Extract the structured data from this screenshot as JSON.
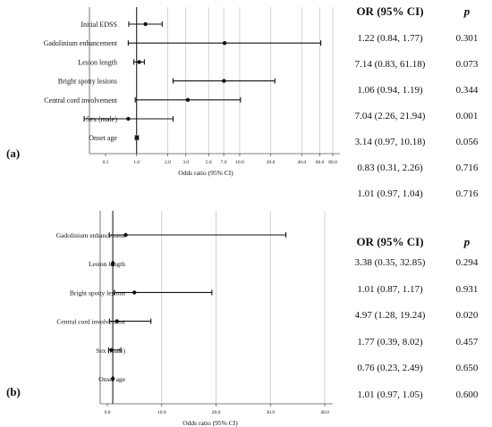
{
  "chart_data": [
    {
      "type": "forest",
      "panel_label": "(a)",
      "xlabel": "Odds ratio (95% CI)",
      "x_scale": "log",
      "x_ticks": [
        "0.5",
        "1.0",
        "2.0",
        "3.0",
        "5.0",
        "7.0",
        "10.0",
        "20.0",
        "40.0",
        "60.0",
        "80.0"
      ],
      "x_tick_values": [
        0.5,
        1,
        2,
        3,
        5,
        7,
        10,
        20,
        40,
        60,
        80
      ],
      "reference_line": 1,
      "categories": [
        "Initial EDSS",
        "Gadolinium enhancement",
        "Lesion length",
        "Bright spotty lesions",
        "Central cord involvement",
        "Sex (male)",
        "Onset age"
      ],
      "or": [
        1.22,
        7.14,
        1.06,
        7.04,
        3.14,
        0.83,
        1.01
      ],
      "lower": [
        0.84,
        0.83,
        0.94,
        2.26,
        0.97,
        0.31,
        0.97
      ],
      "upper": [
        1.77,
        61.18,
        1.19,
        21.94,
        10.18,
        2.26,
        1.04
      ],
      "table": {
        "header_or": "OR (95% CI)",
        "header_p": "p",
        "rows": [
          {
            "or_ci": "1.22 (0.84, 1.77)",
            "p": "0.301"
          },
          {
            "or_ci": "7.14 (0.83, 61.18)",
            "p": "0.073"
          },
          {
            "or_ci": "1.06 (0.94, 1.19)",
            "p": "0.344"
          },
          {
            "or_ci": "7.04 (2.26, 21.94)",
            "p": "0.001"
          },
          {
            "or_ci": "3.14 (0.97, 10.18)",
            "p": "0.056"
          },
          {
            "or_ci": "0.83 (0.31, 2.26)",
            "p": "0.716"
          },
          {
            "or_ci": "1.01 (0.97, 1.04)",
            "p": "0.716"
          }
        ]
      }
    },
    {
      "type": "forest",
      "panel_label": "(b)",
      "xlabel": "Odds ratio (95% CI)",
      "x_scale": "linear",
      "x_ticks": [
        "0.0",
        "10.0",
        "20.0",
        "30.0",
        "40.0"
      ],
      "x_tick_values": [
        0,
        10,
        20,
        30,
        40
      ],
      "reference_line": 1,
      "categories": [
        "Gadolinium enhancement",
        "Lesion length",
        "Bright spotty lesions",
        "Central cord involvement",
        "Sex (male)",
        "Onset age"
      ],
      "or": [
        3.38,
        1.01,
        4.97,
        1.77,
        0.76,
        1.01
      ],
      "lower": [
        0.35,
        0.87,
        1.28,
        0.39,
        0.23,
        0.97
      ],
      "upper": [
        32.85,
        1.17,
        19.24,
        8.02,
        2.49,
        1.05
      ],
      "table": {
        "header_or": "OR (95% CI)",
        "header_p": "p",
        "rows": [
          {
            "or_ci": "3.38 (0.35, 32.85)",
            "p": "0.294"
          },
          {
            "or_ci": "1.01 (0.87, 1.17)",
            "p": "0.931"
          },
          {
            "or_ci": "4.97 (1.28, 19.24)",
            "p": "0.020"
          },
          {
            "or_ci": "1.77 (0.39, 8.02)",
            "p": "0.457"
          },
          {
            "or_ci": "0.76 (0.23, 2.49)",
            "p": "0.650"
          },
          {
            "or_ci": "1.01 (0.97, 1.05)",
            "p": "0.600"
          }
        ]
      }
    }
  ]
}
